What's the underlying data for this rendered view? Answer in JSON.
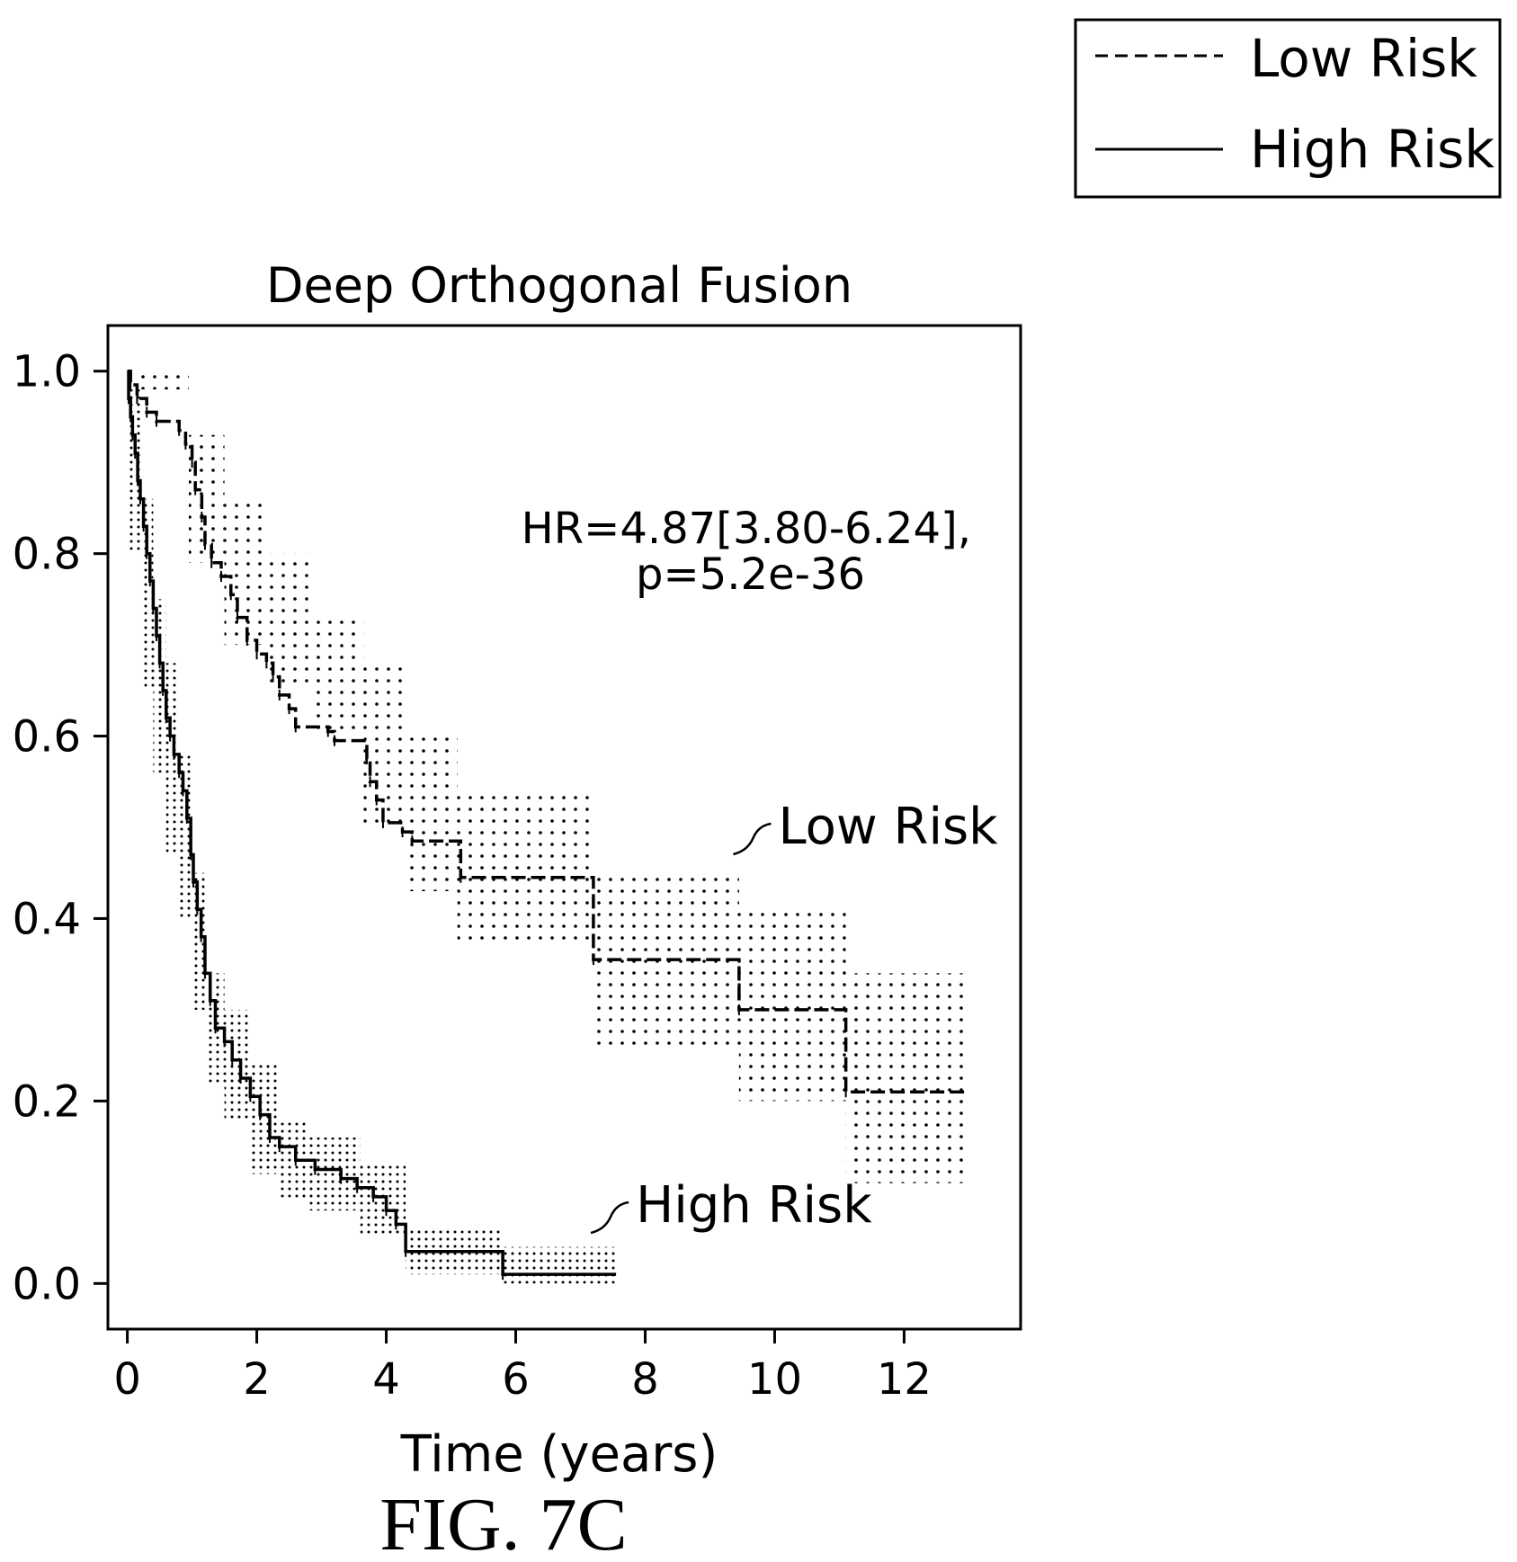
{
  "figure_label": "FIG. 7C",
  "chart_data": {
    "type": "line",
    "title": "Deep Orthogonal Fusion",
    "xlabel": "Time (years)",
    "ylabel": "",
    "xlim": [
      -0.3,
      13.8
    ],
    "ylim": [
      -0.05,
      1.05
    ],
    "xticks": [
      0,
      2,
      4,
      6,
      8,
      10,
      12
    ],
    "yticks": [
      0.0,
      0.2,
      0.4,
      0.6,
      0.8,
      1.0
    ],
    "xtick_labels": [
      "0",
      "2",
      "4",
      "6",
      "8",
      "10",
      "12"
    ],
    "ytick_labels": [
      "0.0",
      "0.2",
      "0.4",
      "0.6",
      "0.8",
      "1.0"
    ],
    "annotation": [
      "HR=4.87[3.80-6.24],",
      "p=5.2e-36"
    ],
    "grid": false,
    "legend": {
      "position": "top-right",
      "entries": [
        {
          "label": "Low Risk",
          "style": "dashed"
        },
        {
          "label": "High Risk",
          "style": "solid"
        }
      ]
    },
    "series": [
      {
        "name": "Low Risk",
        "style": "dashed",
        "color": "#000000",
        "steps": [
          [
            0,
            1.0
          ],
          [
            0.05,
            0.985
          ],
          [
            0.15,
            0.97
          ],
          [
            0.3,
            0.955
          ],
          [
            0.45,
            0.945
          ],
          [
            0.8,
            0.935
          ],
          [
            0.9,
            0.92
          ],
          [
            1.0,
            0.9
          ],
          [
            1.05,
            0.87
          ],
          [
            1.15,
            0.84
          ],
          [
            1.2,
            0.81
          ],
          [
            1.3,
            0.79
          ],
          [
            1.45,
            0.775
          ],
          [
            1.6,
            0.755
          ],
          [
            1.7,
            0.73
          ],
          [
            1.85,
            0.705
          ],
          [
            2.0,
            0.69
          ],
          [
            2.15,
            0.68
          ],
          [
            2.25,
            0.665
          ],
          [
            2.35,
            0.645
          ],
          [
            2.5,
            0.63
          ],
          [
            2.6,
            0.61
          ],
          [
            3.1,
            0.605
          ],
          [
            3.2,
            0.595
          ],
          [
            3.7,
            0.575
          ],
          [
            3.75,
            0.55
          ],
          [
            3.85,
            0.53
          ],
          [
            3.95,
            0.505
          ],
          [
            4.25,
            0.495
          ],
          [
            4.4,
            0.485
          ],
          [
            5.15,
            0.445
          ],
          [
            7.2,
            0.355
          ],
          [
            9.45,
            0.3
          ],
          [
            11.1,
            0.21
          ]
        ],
        "end_x": 13.0
      },
      {
        "name": "High Risk",
        "style": "solid",
        "color": "#000000",
        "steps": [
          [
            0,
            1.0
          ],
          [
            0.02,
            0.97
          ],
          [
            0.05,
            0.95
          ],
          [
            0.08,
            0.93
          ],
          [
            0.12,
            0.91
          ],
          [
            0.16,
            0.88
          ],
          [
            0.2,
            0.86
          ],
          [
            0.25,
            0.83
          ],
          [
            0.3,
            0.8
          ],
          [
            0.35,
            0.77
          ],
          [
            0.4,
            0.74
          ],
          [
            0.45,
            0.71
          ],
          [
            0.5,
            0.68
          ],
          [
            0.55,
            0.65
          ],
          [
            0.6,
            0.62
          ],
          [
            0.66,
            0.6
          ],
          [
            0.72,
            0.58
          ],
          [
            0.8,
            0.56
          ],
          [
            0.86,
            0.54
          ],
          [
            0.92,
            0.51
          ],
          [
            0.98,
            0.47
          ],
          [
            1.02,
            0.44
          ],
          [
            1.08,
            0.41
          ],
          [
            1.14,
            0.38
          ],
          [
            1.2,
            0.34
          ],
          [
            1.28,
            0.31
          ],
          [
            1.36,
            0.28
          ],
          [
            1.5,
            0.265
          ],
          [
            1.62,
            0.245
          ],
          [
            1.75,
            0.225
          ],
          [
            1.9,
            0.205
          ],
          [
            2.05,
            0.185
          ],
          [
            2.2,
            0.16
          ],
          [
            2.35,
            0.15
          ],
          [
            2.6,
            0.135
          ],
          [
            2.9,
            0.125
          ],
          [
            3.3,
            0.115
          ],
          [
            3.55,
            0.105
          ],
          [
            3.8,
            0.095
          ],
          [
            4.0,
            0.08
          ],
          [
            4.15,
            0.065
          ],
          [
            4.3,
            0.035
          ],
          [
            5.8,
            0.01
          ]
        ],
        "end_x": 7.55
      }
    ],
    "confidence_bands": [
      {
        "series": "Low Risk",
        "pattern": "dotted",
        "intervals": [
          [
            0.1,
            0.95,
            0.98,
            1.0
          ],
          [
            0.95,
            1.5,
            0.79,
            0.93
          ],
          [
            1.5,
            2.1,
            0.7,
            0.86
          ],
          [
            2.1,
            2.85,
            0.65,
            0.8
          ],
          [
            2.85,
            3.65,
            0.6,
            0.73
          ],
          [
            3.65,
            4.3,
            0.5,
            0.68
          ],
          [
            4.3,
            5.1,
            0.43,
            0.6
          ],
          [
            5.1,
            7.2,
            0.37,
            0.54
          ],
          [
            7.2,
            9.45,
            0.26,
            0.45
          ],
          [
            9.45,
            11.1,
            0.2,
            0.41
          ],
          [
            11.1,
            13.0,
            0.11,
            0.34
          ]
        ]
      },
      {
        "series": "High Risk",
        "pattern": "dense-dotted",
        "intervals": [
          [
            0.0,
            0.2,
            0.8,
            0.98
          ],
          [
            0.2,
            0.4,
            0.65,
            0.86
          ],
          [
            0.4,
            0.6,
            0.56,
            0.75
          ],
          [
            0.6,
            0.8,
            0.47,
            0.68
          ],
          [
            0.8,
            1.0,
            0.4,
            0.58
          ],
          [
            1.0,
            1.2,
            0.3,
            0.45
          ],
          [
            1.2,
            1.5,
            0.22,
            0.34
          ],
          [
            1.5,
            1.9,
            0.18,
            0.3
          ],
          [
            1.9,
            2.35,
            0.12,
            0.24
          ],
          [
            2.35,
            2.8,
            0.09,
            0.18
          ],
          [
            2.8,
            3.6,
            0.08,
            0.16
          ],
          [
            3.6,
            4.3,
            0.05,
            0.13
          ],
          [
            4.3,
            5.8,
            0.01,
            0.06
          ],
          [
            5.8,
            7.55,
            0.0,
            0.04
          ]
        ]
      }
    ],
    "curve_labels": [
      {
        "series": "Low Risk",
        "text": "Low Risk",
        "x": 9.5,
        "y": 0.5
      },
      {
        "series": "High Risk",
        "text": "High Risk",
        "x": 7.3,
        "y": 0.085
      }
    ]
  }
}
